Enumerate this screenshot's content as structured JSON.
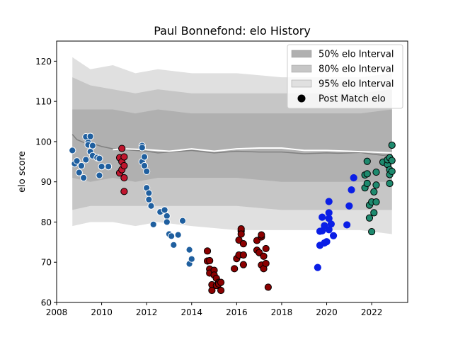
{
  "chart_data": {
    "type": "scatter",
    "title": "Paul Bonnefond: elo History",
    "xlabel": "",
    "ylabel": "elo score",
    "xlim": [
      2008,
      2023.6
    ],
    "ylim": [
      60,
      125
    ],
    "xticks": [
      2008,
      2010,
      2012,
      2014,
      2016,
      2018,
      2020,
      2022
    ],
    "yticks": [
      60,
      70,
      80,
      90,
      100,
      110,
      120
    ],
    "grid": false,
    "legend": {
      "placement": "top-right",
      "entries": [
        {
          "label": "50% elo Interval",
          "kind": "patch",
          "color": "#b0b0b0"
        },
        {
          "label": "80% elo Interval",
          "kind": "patch",
          "color": "#c6c6c6"
        },
        {
          "label": "95% elo Interval",
          "kind": "patch",
          "color": "#e0e0e0"
        },
        {
          "label": "Post Match elo",
          "kind": "marker",
          "color": "#000000"
        }
      ]
    },
    "intervals": {
      "x": [
        2008.7,
        2009.5,
        2010.5,
        2011.5,
        2012.5,
        2014,
        2016,
        2018,
        2020,
        2021.5,
        2022.9
      ],
      "p95_low": [
        79,
        80,
        80,
        79,
        80,
        79,
        78,
        78,
        78,
        78,
        77
      ],
      "p95_high": [
        121,
        118,
        119,
        117,
        118,
        117,
        117,
        116,
        116,
        116,
        117
      ],
      "p80_low": [
        83,
        84,
        84,
        84,
        84,
        84,
        84,
        83,
        83,
        83,
        83
      ],
      "p80_high": [
        116,
        114,
        113,
        112,
        113,
        112,
        112,
        112,
        112,
        112,
        113
      ],
      "p50_low": [
        91,
        90,
        91,
        90,
        91,
        91,
        91,
        90,
        90,
        90,
        90
      ],
      "p50_high": [
        108,
        108,
        108,
        107,
        108,
        107,
        107,
        107,
        107,
        107,
        108
      ]
    },
    "median_line": {
      "color": "#808080",
      "x": [
        2008.7,
        2008.9,
        2009.2,
        2009.6,
        2010.0,
        2010.5,
        2011.0,
        2011.5,
        2012.0,
        2012.5,
        2013.0,
        2014.0,
        2015.0,
        2016.0,
        2017.0,
        2018.0,
        2019.0,
        2020.0,
        2020.5,
        2021.0,
        2021.5,
        2022.0,
        2022.5,
        2022.9
      ],
      "y": [
        101.8,
        100.5,
        99.8,
        99.5,
        98.8,
        98.2,
        98.0,
        97.8,
        97.6,
        97.2,
        97.4,
        97.8,
        97.2,
        97.6,
        97.4,
        97.4,
        97.0,
        97.2,
        97.1,
        97.2,
        97.3,
        96.9,
        96.6,
        96.8
      ]
    },
    "mean_line": {
      "color": "#ffffff",
      "x": [
        2010.5,
        2011.0,
        2012.0,
        2013.0,
        2014.0,
        2015.0,
        2016.0,
        2017.0,
        2018.0,
        2019.0,
        2020.0,
        2021.0,
        2022.0,
        2022.9
      ],
      "y": [
        98.0,
        98.2,
        98.0,
        97.6,
        98.2,
        97.6,
        98.2,
        98.4,
        98.4,
        97.8,
        97.8,
        97.6,
        97.4,
        97.2
      ]
    },
    "series": [
      {
        "color": "#1f5f9f",
        "edge": "#ffffff",
        "points": [
          [
            2008.7,
            97.8
          ],
          [
            2008.8,
            94.5
          ],
          [
            2008.9,
            95.2
          ],
          [
            2009.0,
            92.3
          ],
          [
            2009.1,
            94.0
          ],
          [
            2009.2,
            91.0
          ],
          [
            2009.3,
            95.5
          ],
          [
            2009.3,
            101.2
          ],
          [
            2009.4,
            99.8
          ],
          [
            2009.4,
            99.2
          ],
          [
            2009.5,
            101.3
          ],
          [
            2009.5,
            97.5
          ],
          [
            2009.6,
            96.5
          ],
          [
            2009.6,
            99.0
          ],
          [
            2009.8,
            96.0
          ],
          [
            2009.9,
            95.8
          ],
          [
            2009.9,
            91.6
          ],
          [
            2010.0,
            93.8
          ],
          [
            2010.3,
            93.8
          ],
          [
            2011.8,
            99.0
          ],
          [
            2011.8,
            98.5
          ],
          [
            2011.8,
            95.0
          ],
          [
            2011.9,
            96.2
          ],
          [
            2011.9,
            94.0
          ],
          [
            2012.0,
            92.6
          ],
          [
            2012.0,
            88.5
          ],
          [
            2012.1,
            87.2
          ],
          [
            2012.1,
            85.6
          ],
          [
            2012.2,
            84.0
          ],
          [
            2012.3,
            79.4
          ],
          [
            2012.6,
            82.5
          ],
          [
            2012.8,
            83.0
          ],
          [
            2012.9,
            81.5
          ],
          [
            2012.9,
            80.0
          ],
          [
            2013.0,
            77.0
          ],
          [
            2013.1,
            76.5
          ],
          [
            2013.2,
            74.3
          ],
          [
            2013.4,
            76.8
          ],
          [
            2013.6,
            80.3
          ],
          [
            2013.9,
            73.1
          ],
          [
            2013.9,
            69.6
          ],
          [
            2014.0,
            70.8
          ]
        ]
      },
      {
        "color": "#c0162e",
        "edge": "#000000",
        "points": [
          [
            2010.8,
            96.0
          ],
          [
            2010.8,
            92.2
          ],
          [
            2010.9,
            95.0
          ],
          [
            2010.9,
            98.3
          ],
          [
            2010.9,
            93.0
          ],
          [
            2011.0,
            96.2
          ],
          [
            2011.0,
            94.0
          ],
          [
            2011.0,
            91.0
          ],
          [
            2011.0,
            87.6
          ]
        ]
      },
      {
        "color": "#8b0000",
        "edge": "#000000",
        "points": [
          [
            2014.7,
            72.8
          ],
          [
            2014.7,
            70.3
          ],
          [
            2014.8,
            70.4
          ],
          [
            2014.8,
            68.3
          ],
          [
            2014.8,
            67.3
          ],
          [
            2014.9,
            64.4
          ],
          [
            2014.9,
            63.0
          ],
          [
            2015.0,
            68.0
          ],
          [
            2015.0,
            66.8
          ],
          [
            2015.1,
            66.0
          ],
          [
            2015.1,
            64.2
          ],
          [
            2015.2,
            65.0
          ],
          [
            2015.2,
            64.6
          ],
          [
            2015.3,
            63.0
          ],
          [
            2015.3,
            65.0
          ],
          [
            2015.9,
            68.4
          ],
          [
            2016.0,
            70.9
          ],
          [
            2016.1,
            71.8
          ],
          [
            2016.1,
            75.5
          ],
          [
            2016.2,
            77.8
          ],
          [
            2016.2,
            78.3
          ],
          [
            2016.2,
            77.0
          ],
          [
            2016.3,
            74.6
          ],
          [
            2016.3,
            71.8
          ],
          [
            2016.3,
            69.4
          ],
          [
            2016.9,
            75.4
          ],
          [
            2016.9,
            73.0
          ],
          [
            2017.0,
            72.4
          ],
          [
            2017.1,
            76.3
          ],
          [
            2017.1,
            76.8
          ],
          [
            2017.1,
            69.3
          ],
          [
            2017.2,
            71.5
          ],
          [
            2017.2,
            68.4
          ],
          [
            2017.3,
            73.4
          ],
          [
            2017.3,
            69.7
          ],
          [
            2017.4,
            63.8
          ]
        ]
      },
      {
        "color": "#0a1ee6",
        "edge": "#0a1ee6",
        "points": [
          [
            2019.6,
            68.7
          ],
          [
            2019.7,
            74.2
          ],
          [
            2019.7,
            77.7
          ],
          [
            2019.8,
            81.2
          ],
          [
            2019.8,
            77.8
          ],
          [
            2019.9,
            79.1
          ],
          [
            2019.9,
            74.8
          ],
          [
            2020.0,
            75.1
          ],
          [
            2020.1,
            78.1
          ],
          [
            2020.1,
            82.3
          ],
          [
            2020.1,
            85.1
          ],
          [
            2020.1,
            80.9
          ],
          [
            2020.2,
            79.5
          ],
          [
            2020.3,
            76.6
          ],
          [
            2020.9,
            79.3
          ],
          [
            2021.0,
            84.0
          ],
          [
            2021.1,
            88.0
          ],
          [
            2021.2,
            91.0
          ]
        ]
      },
      {
        "color": "#1e8a6e",
        "edge": "#000000",
        "points": [
          [
            2021.7,
            88.5
          ],
          [
            2021.7,
            91.7
          ],
          [
            2021.8,
            95.1
          ],
          [
            2021.8,
            92.0
          ],
          [
            2021.8,
            89.6
          ],
          [
            2021.9,
            84.2
          ],
          [
            2021.9,
            81.0
          ],
          [
            2022.0,
            77.6
          ],
          [
            2022.0,
            85.0
          ],
          [
            2022.1,
            87.5
          ],
          [
            2022.1,
            82.3
          ],
          [
            2022.2,
            89.2
          ],
          [
            2022.2,
            85.0
          ],
          [
            2022.2,
            92.4
          ],
          [
            2022.5,
            94.9
          ],
          [
            2022.7,
            94.3
          ],
          [
            2022.7,
            95.5
          ],
          [
            2022.8,
            96.0
          ],
          [
            2022.8,
            93.0
          ],
          [
            2022.8,
            89.6
          ],
          [
            2022.8,
            91.8
          ],
          [
            2022.9,
            99.1
          ],
          [
            2022.9,
            95.3
          ],
          [
            2022.9,
            92.6
          ]
        ]
      }
    ]
  }
}
